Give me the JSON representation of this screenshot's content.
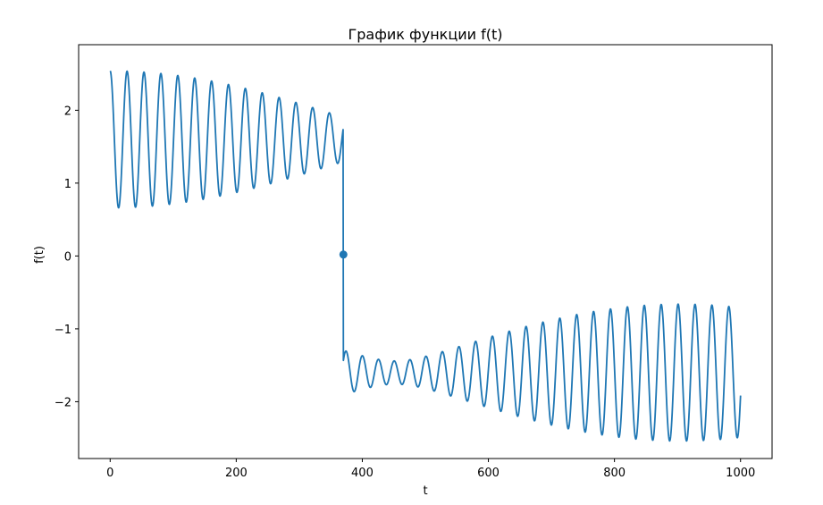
{
  "chart_data": {
    "type": "line",
    "title": "График функции f(t)",
    "xlabel": "t",
    "ylabel": "f(t)",
    "xlim": [
      -50,
      1050
    ],
    "ylim": [
      -2.78,
      2.9
    ],
    "xticks": [
      0,
      200,
      400,
      600,
      800,
      1000
    ],
    "yticks": [
      -2,
      -1,
      0,
      1,
      2
    ],
    "xtick_labels": [
      "0",
      "200",
      "400",
      "600",
      "800",
      "1000"
    ],
    "ytick_labels": [
      "−2",
      "−1",
      "0",
      "1",
      "2"
    ],
    "grid": false,
    "series": [
      {
        "color": "#1f77b4",
        "x_range": [
          0,
          1000
        ],
        "discontinuity_t": 370,
        "segment_offsets": [
          1.6,
          -1.6
        ],
        "components": [
          {
            "amplitude": 0.55,
            "period": 26.5,
            "phase_deg": 90
          },
          {
            "amplitude": 0.39,
            "period": 27.3,
            "phase_deg": 90
          }
        ]
      }
    ],
    "markers": [
      {
        "x": 370,
        "y": 0.02,
        "color": "#1f77b4"
      }
    ]
  }
}
